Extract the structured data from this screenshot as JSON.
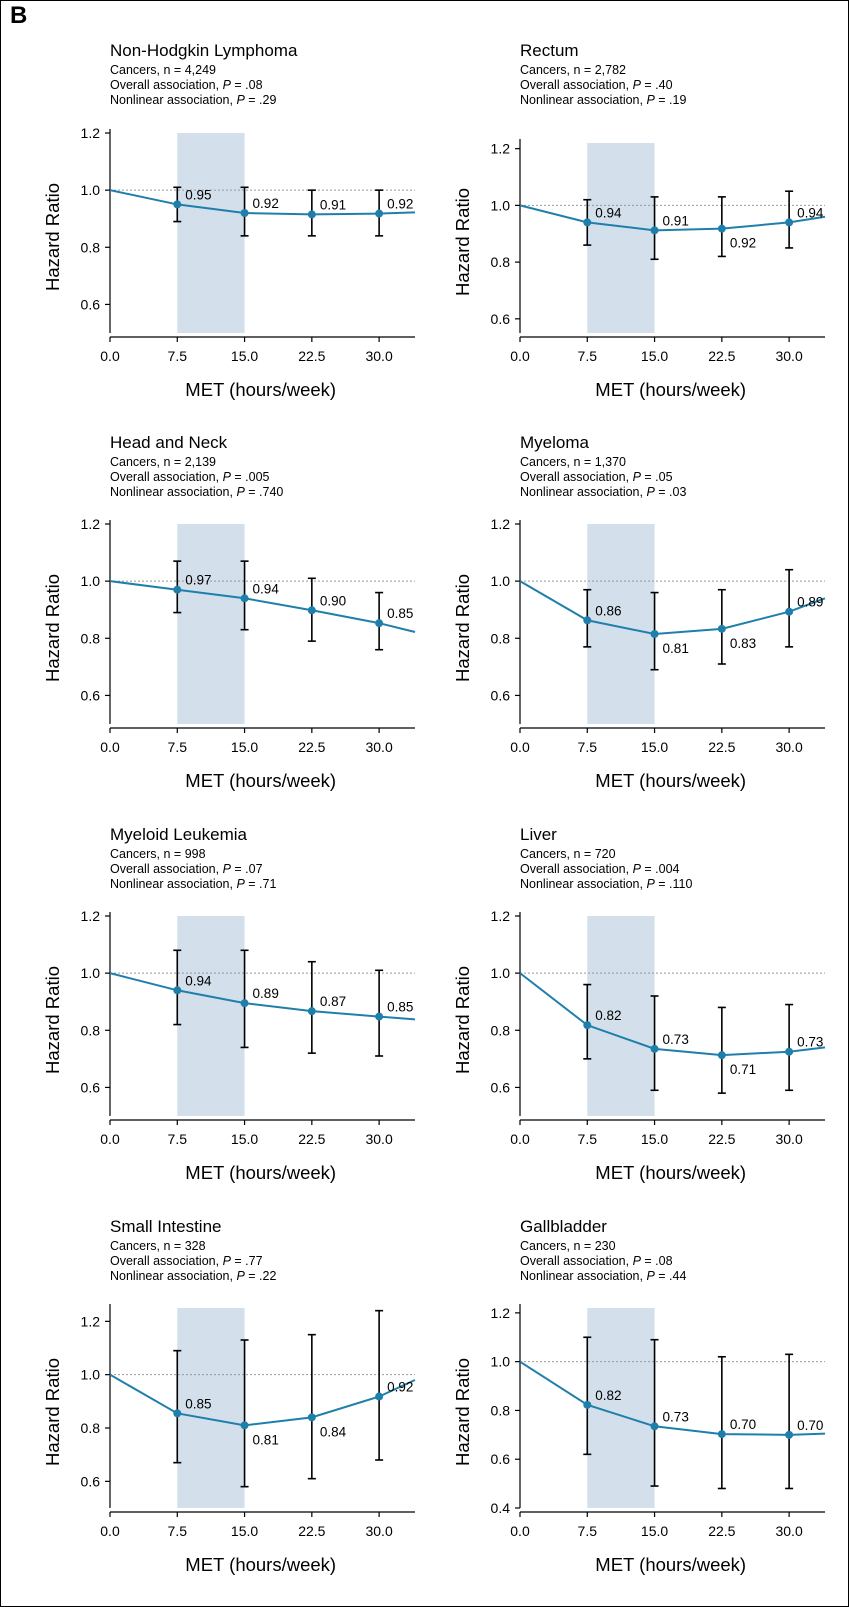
{
  "panel_letter": "B",
  "colors": {
    "curve": "#1f7fab",
    "band": "#d3dfea",
    "ref_line": "#999999",
    "error_bar": "#000000"
  },
  "chart_data": [
    {
      "type": "line",
      "title": "Non-Hodgkin Lymphoma",
      "subtitle_lines": [
        "Cancers, n = 4,249",
        "Overall association, P = .08",
        "Nonlinear association, P = .29"
      ],
      "p_values": {
        "overall": ".08",
        "nonlinear": ".29"
      },
      "xlabel": "MET (hours/week)",
      "ylabel": "Hazard Ratio",
      "xlim": [
        0,
        34
      ],
      "ylim": [
        0.5,
        1.2
      ],
      "xticks": [
        "0.0",
        "7.5",
        "15.0",
        "22.5",
        "30.0"
      ],
      "yticks": [
        "0.6",
        "0.8",
        "1.0",
        "1.2"
      ],
      "shaded_range": [
        7.5,
        15
      ],
      "reference_y": 1.0,
      "curve": {
        "x": [
          0,
          7.5,
          15,
          22.5,
          30,
          34
        ],
        "y": [
          1.0,
          0.95,
          0.92,
          0.915,
          0.918,
          0.922
        ]
      },
      "points": [
        {
          "x": 7.5,
          "hr": 0.95,
          "lo": 0.89,
          "hi": 1.01,
          "label": "0.95"
        },
        {
          "x": 15,
          "hr": 0.92,
          "lo": 0.84,
          "hi": 1.01,
          "label": "0.92"
        },
        {
          "x": 22.5,
          "hr": 0.915,
          "lo": 0.84,
          "hi": 1.0,
          "label": "0.91"
        },
        {
          "x": 30,
          "hr": 0.918,
          "lo": 0.84,
          "hi": 1.0,
          "label": "0.92"
        }
      ]
    },
    {
      "type": "line",
      "title": "Rectum",
      "subtitle_lines": [
        "Cancers, n = 2,782",
        "Overall association, P = .40",
        "Nonlinear association, P = .19"
      ],
      "p_values": {
        "overall": ".40",
        "nonlinear": ".19"
      },
      "xlabel": "MET (hours/week)",
      "ylabel": "Hazard Ratio",
      "xlim": [
        0,
        34
      ],
      "ylim": [
        0.55,
        1.22
      ],
      "xticks": [
        "0.0",
        "7.5",
        "15.0",
        "22.5",
        "30.0"
      ],
      "yticks": [
        "0.6",
        "0.8",
        "1.0",
        "1.2"
      ],
      "shaded_range": [
        7.5,
        15
      ],
      "reference_y": 1.0,
      "curve": {
        "x": [
          0,
          7.5,
          15,
          22.5,
          30,
          34
        ],
        "y": [
          1.0,
          0.94,
          0.912,
          0.918,
          0.94,
          0.96
        ]
      },
      "points": [
        {
          "x": 7.5,
          "hr": 0.94,
          "lo": 0.86,
          "hi": 1.02,
          "label": "0.94"
        },
        {
          "x": 15,
          "hr": 0.912,
          "lo": 0.81,
          "hi": 1.03,
          "label": "0.91"
        },
        {
          "x": 22.5,
          "hr": 0.918,
          "lo": 0.82,
          "hi": 1.03,
          "label": "0.92"
        },
        {
          "x": 30,
          "hr": 0.94,
          "lo": 0.85,
          "hi": 1.05,
          "label": "0.94"
        }
      ]
    },
    {
      "type": "line",
      "title": "Head and Neck",
      "subtitle_lines": [
        "Cancers, n = 2,139",
        "Overall association, P = .005",
        "Nonlinear association, P = .740"
      ],
      "p_values": {
        "overall": ".005",
        "nonlinear": ".740"
      },
      "xlabel": "MET (hours/week)",
      "ylabel": "Hazard Ratio",
      "xlim": [
        0,
        34
      ],
      "ylim": [
        0.5,
        1.2
      ],
      "xticks": [
        "0.0",
        "7.5",
        "15.0",
        "22.5",
        "30.0"
      ],
      "yticks": [
        "0.6",
        "0.8",
        "1.0",
        "1.2"
      ],
      "shaded_range": [
        7.5,
        15
      ],
      "reference_y": 1.0,
      "curve": {
        "x": [
          0,
          7.5,
          15,
          22.5,
          30,
          34
        ],
        "y": [
          1.0,
          0.97,
          0.94,
          0.898,
          0.853,
          0.822
        ]
      },
      "points": [
        {
          "x": 7.5,
          "hr": 0.97,
          "lo": 0.89,
          "hi": 1.07,
          "label": "0.97"
        },
        {
          "x": 15,
          "hr": 0.94,
          "lo": 0.83,
          "hi": 1.07,
          "label": "0.94"
        },
        {
          "x": 22.5,
          "hr": 0.898,
          "lo": 0.79,
          "hi": 1.01,
          "label": "0.90"
        },
        {
          "x": 30,
          "hr": 0.853,
          "lo": 0.76,
          "hi": 0.96,
          "label": "0.85"
        }
      ]
    },
    {
      "type": "line",
      "title": "Myeloma",
      "subtitle_lines": [
        "Cancers, n = 1,370",
        "Overall association, P = .05",
        "Nonlinear association, P = .03"
      ],
      "p_values": {
        "overall": ".05",
        "nonlinear": ".03"
      },
      "xlabel": "MET (hours/week)",
      "ylabel": "Hazard Ratio",
      "xlim": [
        0,
        34
      ],
      "ylim": [
        0.5,
        1.2
      ],
      "xticks": [
        "0.0",
        "7.5",
        "15.0",
        "22.5",
        "30.0"
      ],
      "yticks": [
        "0.6",
        "0.8",
        "1.0",
        "1.2"
      ],
      "shaded_range": [
        7.5,
        15
      ],
      "reference_y": 1.0,
      "curve": {
        "x": [
          0,
          7.5,
          15,
          22.5,
          30,
          34
        ],
        "y": [
          1.0,
          0.863,
          0.815,
          0.833,
          0.893,
          0.94
        ]
      },
      "points": [
        {
          "x": 7.5,
          "hr": 0.863,
          "lo": 0.77,
          "hi": 0.97,
          "label": "0.86"
        },
        {
          "x": 15,
          "hr": 0.815,
          "lo": 0.69,
          "hi": 0.96,
          "label": "0.81"
        },
        {
          "x": 22.5,
          "hr": 0.833,
          "lo": 0.71,
          "hi": 0.97,
          "label": "0.83"
        },
        {
          "x": 30,
          "hr": 0.893,
          "lo": 0.77,
          "hi": 1.04,
          "label": "0.89"
        }
      ]
    },
    {
      "type": "line",
      "title": "Myeloid Leukemia",
      "subtitle_lines": [
        "Cancers, n = 998",
        "Overall association, P = .07",
        "Nonlinear association, P = .71"
      ],
      "p_values": {
        "overall": ".07",
        "nonlinear": ".71"
      },
      "xlabel": "MET (hours/week)",
      "ylabel": "Hazard Ratio",
      "xlim": [
        0,
        34
      ],
      "ylim": [
        0.5,
        1.2
      ],
      "xticks": [
        "0.0",
        "7.5",
        "15.0",
        "22.5",
        "30.0"
      ],
      "yticks": [
        "0.6",
        "0.8",
        "1.0",
        "1.2"
      ],
      "shaded_range": [
        7.5,
        15
      ],
      "reference_y": 1.0,
      "curve": {
        "x": [
          0,
          7.5,
          15,
          22.5,
          30,
          34
        ],
        "y": [
          1.0,
          0.94,
          0.895,
          0.867,
          0.848,
          0.838
        ]
      },
      "points": [
        {
          "x": 7.5,
          "hr": 0.94,
          "lo": 0.82,
          "hi": 1.08,
          "label": "0.94"
        },
        {
          "x": 15,
          "hr": 0.895,
          "lo": 0.74,
          "hi": 1.08,
          "label": "0.89"
        },
        {
          "x": 22.5,
          "hr": 0.867,
          "lo": 0.72,
          "hi": 1.04,
          "label": "0.87"
        },
        {
          "x": 30,
          "hr": 0.848,
          "lo": 0.71,
          "hi": 1.01,
          "label": "0.85"
        }
      ]
    },
    {
      "type": "line",
      "title": "Liver",
      "subtitle_lines": [
        "Cancers, n = 720",
        "Overall association, P = .004",
        "Nonlinear association, P = .110"
      ],
      "p_values": {
        "overall": ".004",
        "nonlinear": ".110"
      },
      "xlabel": "MET (hours/week)",
      "ylabel": "Hazard Ratio",
      "xlim": [
        0,
        34
      ],
      "ylim": [
        0.5,
        1.2
      ],
      "xticks": [
        "0.0",
        "7.5",
        "15.0",
        "22.5",
        "30.0"
      ],
      "yticks": [
        "0.6",
        "0.8",
        "1.0",
        "1.2"
      ],
      "shaded_range": [
        7.5,
        15
      ],
      "reference_y": 1.0,
      "curve": {
        "x": [
          0,
          7.5,
          15,
          22.5,
          30,
          34
        ],
        "y": [
          1.0,
          0.818,
          0.735,
          0.713,
          0.725,
          0.74
        ]
      },
      "points": [
        {
          "x": 7.5,
          "hr": 0.818,
          "lo": 0.7,
          "hi": 0.96,
          "label": "0.82"
        },
        {
          "x": 15,
          "hr": 0.735,
          "lo": 0.59,
          "hi": 0.92,
          "label": "0.73"
        },
        {
          "x": 22.5,
          "hr": 0.713,
          "lo": 0.58,
          "hi": 0.88,
          "label": "0.71"
        },
        {
          "x": 30,
          "hr": 0.725,
          "lo": 0.59,
          "hi": 0.89,
          "label": "0.73"
        }
      ]
    },
    {
      "type": "line",
      "title": "Small Intestine",
      "subtitle_lines": [
        "Cancers, n = 328",
        "Overall association, P = .77",
        "Nonlinear association, P = .22"
      ],
      "p_values": {
        "overall": ".77",
        "nonlinear": ".22"
      },
      "xlabel": "MET (hours/week)",
      "ylabel": "Hazard Ratio",
      "xlim": [
        0,
        34
      ],
      "ylim": [
        0.5,
        1.25
      ],
      "xticks": [
        "0.0",
        "7.5",
        "15.0",
        "22.5",
        "30.0"
      ],
      "yticks": [
        "0.6",
        "0.8",
        "1.0",
        "1.2"
      ],
      "shaded_range": [
        7.5,
        15
      ],
      "reference_y": 1.0,
      "curve": {
        "x": [
          0,
          7.5,
          15,
          22.5,
          30,
          34
        ],
        "y": [
          1.0,
          0.855,
          0.81,
          0.84,
          0.918,
          0.98
        ]
      },
      "points": [
        {
          "x": 7.5,
          "hr": 0.855,
          "lo": 0.67,
          "hi": 1.09,
          "label": "0.85"
        },
        {
          "x": 15,
          "hr": 0.81,
          "lo": 0.58,
          "hi": 1.13,
          "label": "0.81"
        },
        {
          "x": 22.5,
          "hr": 0.84,
          "lo": 0.61,
          "hi": 1.15,
          "label": "0.84"
        },
        {
          "x": 30,
          "hr": 0.918,
          "lo": 0.68,
          "hi": 1.24,
          "label": "0.92"
        }
      ]
    },
    {
      "type": "line",
      "title": "Gallbladder",
      "subtitle_lines": [
        "Cancers, n = 230",
        "Overall association, P = .08",
        "Nonlinear association, P = .44"
      ],
      "p_values": {
        "overall": ".08",
        "nonlinear": ".44"
      },
      "xlabel": "MET (hours/week)",
      "ylabel": "Hazard Ratio",
      "xlim": [
        0,
        34
      ],
      "ylim": [
        0.4,
        1.22
      ],
      "xticks": [
        "0.0",
        "7.5",
        "15.0",
        "22.5",
        "30.0"
      ],
      "yticks": [
        "0.4",
        "0.6",
        "0.8",
        "1.0",
        "1.2"
      ],
      "shaded_range": [
        7.5,
        15
      ],
      "reference_y": 1.0,
      "curve": {
        "x": [
          0,
          7.5,
          15,
          22.5,
          30,
          34
        ],
        "y": [
          1.0,
          0.823,
          0.735,
          0.703,
          0.7,
          0.705
        ]
      },
      "points": [
        {
          "x": 7.5,
          "hr": 0.823,
          "lo": 0.62,
          "hi": 1.1,
          "label": "0.82"
        },
        {
          "x": 15,
          "hr": 0.735,
          "lo": 0.49,
          "hi": 1.09,
          "label": "0.73"
        },
        {
          "x": 22.5,
          "hr": 0.703,
          "lo": 0.48,
          "hi": 1.02,
          "label": "0.70"
        },
        {
          "x": 30,
          "hr": 0.7,
          "lo": 0.48,
          "hi": 1.03,
          "label": "0.70"
        }
      ]
    }
  ]
}
